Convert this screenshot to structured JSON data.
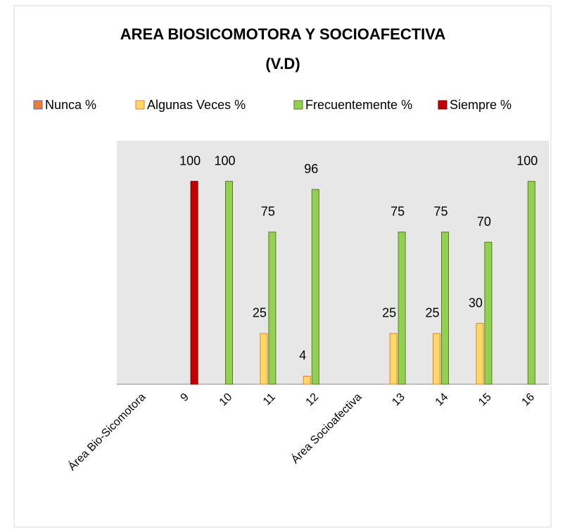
{
  "chart_data": {
    "type": "bar",
    "title": "AREA BIOSICOMOTORA Y SOCIOAFECTIVA",
    "subtitle": "(V.D)",
    "categories": [
      "Área Bio-Sicomotora",
      "9",
      "10",
      "11",
      "12",
      "Área Socioafectiva",
      "13",
      "14",
      "15",
      "16"
    ],
    "series": [
      {
        "name": "Nunca %",
        "color": "#ed7d31",
        "values": [
          null,
          null,
          null,
          null,
          null,
          null,
          null,
          null,
          null,
          null
        ]
      },
      {
        "name": "Algunas Veces %",
        "color": "#ffd966",
        "values": [
          null,
          null,
          null,
          25,
          4,
          null,
          25,
          25,
          30,
          null
        ]
      },
      {
        "name": "Frecuentemente %",
        "color": "#92d050",
        "values": [
          null,
          null,
          100,
          75,
          96,
          null,
          75,
          75,
          70,
          100
        ]
      },
      {
        "name": "Siempre %",
        "color": "#c00000",
        "values": [
          null,
          100,
          null,
          null,
          null,
          null,
          null,
          null,
          null,
          null
        ]
      }
    ],
    "ylim": [
      0,
      120
    ],
    "legend": "top"
  }
}
